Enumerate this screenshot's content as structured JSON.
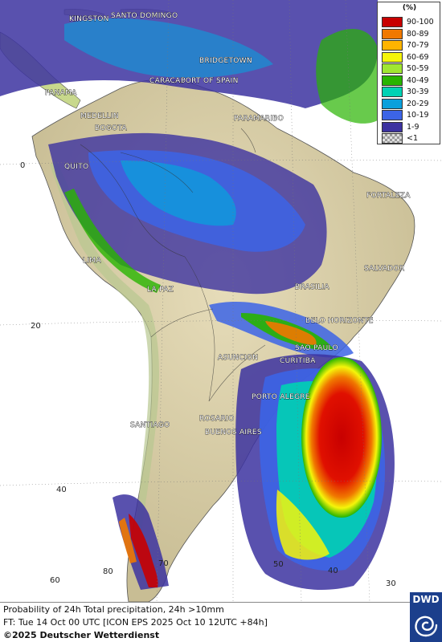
{
  "legend": {
    "unit": "(%)",
    "items": [
      {
        "label": "90-100",
        "color": "#c80000"
      },
      {
        "label": "80-89",
        "color": "#f07800"
      },
      {
        "label": "70-79",
        "color": "#ffb400"
      },
      {
        "label": "60-69",
        "color": "#f5f50a"
      },
      {
        "label": "50-59",
        "color": "#a0e632"
      },
      {
        "label": "40-49",
        "color": "#28b400"
      },
      {
        "label": "30-39",
        "color": "#00d2b4"
      },
      {
        "label": "20-29",
        "color": "#0aa0dc"
      },
      {
        "label": "10-19",
        "color": "#3c64e6"
      },
      {
        "label": "1-9",
        "color": "#3c32a0"
      },
      {
        "label": "<1",
        "color": "#c8c8c8"
      }
    ]
  },
  "cities": [
    {
      "name": "KINGSTON"
    },
    {
      "name": "SANTO DOMINGO"
    },
    {
      "name": "BRIDGETOWN"
    },
    {
      "name": "CARACAS"
    },
    {
      "name": "PORT OF SPAIN"
    },
    {
      "name": "PANAMA"
    },
    {
      "name": "MEDELLIN"
    },
    {
      "name": "BOGOTA"
    },
    {
      "name": "PARAMARIBO"
    },
    {
      "name": "QUITO"
    },
    {
      "name": "FORTALEZA"
    },
    {
      "name": "LIMA"
    },
    {
      "name": "SALVADOR"
    },
    {
      "name": "BRASILIA"
    },
    {
      "name": "LA PAZ"
    },
    {
      "name": "BELO HORIZONTE"
    },
    {
      "name": "SAO PAULO"
    },
    {
      "name": "ASUNCION"
    },
    {
      "name": "CURITIBA"
    },
    {
      "name": "PORTO ALEGRE"
    },
    {
      "name": "SANTIAGO"
    },
    {
      "name": "ROSARIO"
    },
    {
      "name": "BUENOS AIRES"
    }
  ],
  "grid_labels": [
    "0",
    "20",
    "40",
    "70",
    "80",
    "60",
    "50",
    "40",
    "30"
  ],
  "footer": {
    "line1": "Probability of 24h Total precipitation, 24h >10mm",
    "line2": "FT: Tue 14 Oct 00 UTC [ICON EPS 2025 Oct 10 12UTC +84h]",
    "line3": "©2025 Deutscher Wetterdienst"
  },
  "logo": {
    "text": "DWD"
  },
  "colors": {
    "ocean": "#ffffff",
    "land_dry": "#d8cfae",
    "rain_low": "#3c32a0",
    "rain_mid": "#3c64e6",
    "rain_high": "#c80000"
  }
}
